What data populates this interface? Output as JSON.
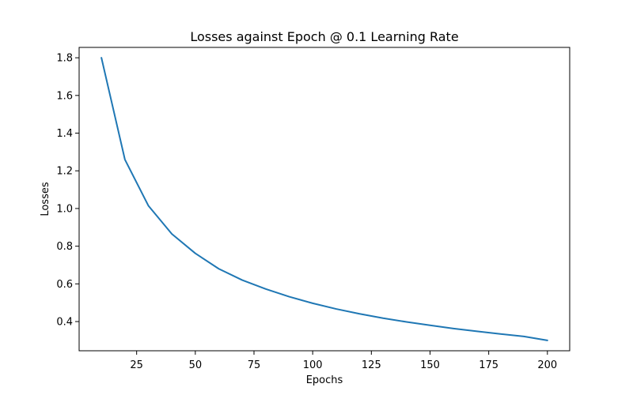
{
  "chart_data": {
    "type": "line",
    "title": "Losses against Epoch @ 0.1 Learning Rate",
    "xlabel": "Epochs",
    "ylabel": "Losses",
    "xlim": [
      0.5,
      209.5
    ],
    "ylim": [
      0.245,
      1.855
    ],
    "xticks": [
      25,
      50,
      75,
      100,
      125,
      150,
      175,
      200
    ],
    "yticks": [
      0.4,
      0.6,
      0.8,
      1.0,
      1.2,
      1.4,
      1.6,
      1.8
    ],
    "xtick_labels": [
      "25",
      "50",
      "75",
      "100",
      "125",
      "150",
      "175",
      "200"
    ],
    "ytick_labels": [
      "0.4",
      "0.6",
      "0.8",
      "1.0",
      "1.2",
      "1.4",
      "1.6",
      "1.8"
    ],
    "grid": false,
    "series": [
      {
        "color": "#1f77b4",
        "x": [
          10,
          20,
          30,
          40,
          50,
          60,
          70,
          80,
          90,
          100,
          110,
          120,
          130,
          140,
          150,
          160,
          170,
          180,
          190,
          200
        ],
        "values": [
          1.8,
          1.26,
          1.015,
          0.865,
          0.762,
          0.68,
          0.62,
          0.573,
          0.532,
          0.497,
          0.467,
          0.441,
          0.418,
          0.398,
          0.38,
          0.363,
          0.348,
          0.334,
          0.321,
          0.3
        ]
      }
    ]
  }
}
